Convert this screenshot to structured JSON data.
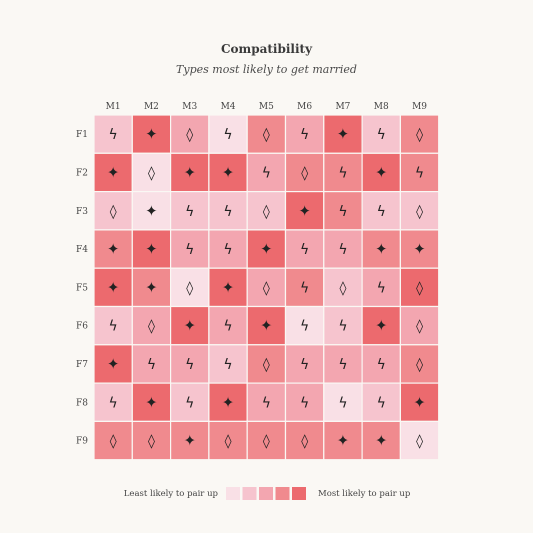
{
  "chart_data": {
    "type": "heatmap",
    "title": "Compatibility",
    "subtitle": "Types most likely to get married",
    "columns": [
      "M1",
      "M2",
      "M3",
      "M4",
      "M5",
      "M6",
      "M7",
      "M8",
      "M9"
    ],
    "rows": [
      "F1",
      "F2",
      "F3",
      "F4",
      "F5",
      "F6",
      "F7",
      "F8",
      "F9"
    ],
    "scale_colors": [
      "#f9e0e6",
      "#f6c4ce",
      "#f3a6b0",
      "#f08a8e",
      "#ec6a6e"
    ],
    "values": [
      [
        2,
        5,
        3,
        1,
        4,
        3,
        5,
        2,
        4
      ],
      [
        5,
        1,
        5,
        5,
        3,
        4,
        4,
        5,
        4
      ],
      [
        2,
        1,
        2,
        2,
        2,
        5,
        4,
        2,
        2
      ],
      [
        4,
        5,
        3,
        3,
        5,
        3,
        3,
        4,
        4
      ],
      [
        5,
        4,
        1,
        5,
        3,
        4,
        2,
        3,
        5
      ],
      [
        2,
        3,
        5,
        3,
        5,
        1,
        2,
        5,
        3
      ],
      [
        5,
        3,
        3,
        2,
        4,
        3,
        3,
        3,
        4
      ],
      [
        2,
        5,
        2,
        5,
        3,
        3,
        1,
        2,
        5
      ],
      [
        4,
        4,
        4,
        4,
        4,
        4,
        4,
        4,
        1
      ]
    ],
    "symbols": [
      [
        "bolt",
        "star",
        "diamond",
        "bolt",
        "diamond",
        "bolt",
        "star",
        "bolt",
        "diamond"
      ],
      [
        "star",
        "diamond",
        "star",
        "star",
        "bolt",
        "diamond",
        "bolt",
        "star",
        "bolt"
      ],
      [
        "diamond",
        "star",
        "bolt",
        "bolt",
        "diamond",
        "star",
        "bolt",
        "bolt",
        "diamond"
      ],
      [
        "star",
        "star",
        "bolt",
        "bolt",
        "star",
        "bolt",
        "bolt",
        "star",
        "star"
      ],
      [
        "star",
        "star",
        "diamond",
        "star",
        "diamond",
        "bolt",
        "diamond",
        "bolt",
        "diamond"
      ],
      [
        "bolt",
        "diamond",
        "star",
        "bolt",
        "star",
        "bolt",
        "bolt",
        "star",
        "diamond"
      ],
      [
        "star",
        "bolt",
        "bolt",
        "bolt",
        "diamond",
        "bolt",
        "bolt",
        "bolt",
        "diamond"
      ],
      [
        "bolt",
        "star",
        "bolt",
        "star",
        "bolt",
        "bolt",
        "bolt",
        "bolt",
        "star"
      ],
      [
        "diamond",
        "diamond",
        "star",
        "diamond",
        "diamond",
        "diamond",
        "star",
        "star",
        "diamond"
      ]
    ],
    "legend": {
      "low_label": "Least likely to pair up",
      "high_label": "Most likely to pair up",
      "steps": [
        1,
        2,
        3,
        4,
        5
      ]
    }
  }
}
